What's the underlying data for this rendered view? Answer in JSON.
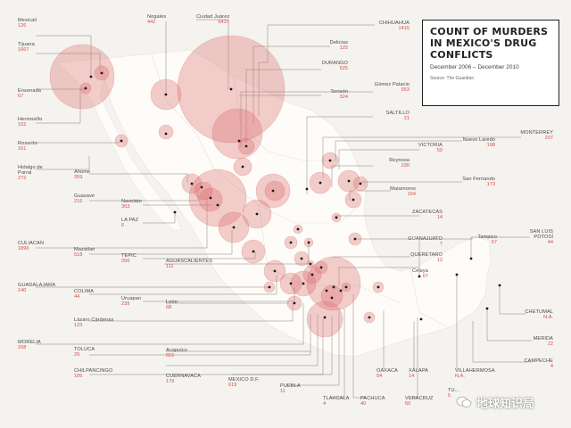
{
  "title": "COUNT OF MURDERS IN MEXICO'S DRUG CONFLICTS",
  "subtitle": "December 2006 – December 2010",
  "source": "Source: The Guardian",
  "watermark": "地球知识局",
  "colors": {
    "bubble": "#dc6b6b",
    "value_text": "#d84a4a",
    "leader": "#555555",
    "land": "#fdfcf8"
  },
  "places": [
    {
      "key": "mexicali",
      "name": "Mexicali",
      "value": "126"
    },
    {
      "key": "tijuana",
      "name": "Tijuana",
      "value": "1667"
    },
    {
      "key": "ensenada",
      "name": "Ensenada",
      "value": "67"
    },
    {
      "key": "hermosillo",
      "name": "Hermosillo",
      "value": "152"
    },
    {
      "key": "rosarito",
      "name": "Rosarito",
      "value": "161"
    },
    {
      "key": "hidalgo",
      "name": "Hidalgo de Parral",
      "value": "272"
    },
    {
      "key": "ahome",
      "name": "Ahome",
      "value": "359"
    },
    {
      "key": "guasave",
      "name": "Guasave",
      "value": "216"
    },
    {
      "key": "navolato",
      "name": "Navolato",
      "value": "363"
    },
    {
      "key": "lapaz",
      "name": "LA PAZ",
      "value": "6"
    },
    {
      "key": "culiacan",
      "name": "CULIACAN",
      "value": "1890"
    },
    {
      "key": "mazatlan",
      "name": "Mazatlan",
      "value": "518"
    },
    {
      "key": "tepic",
      "name": "TEPIC",
      "value": "256"
    },
    {
      "key": "guadalajara",
      "name": "GUADALAJARA",
      "value": "140"
    },
    {
      "key": "colima",
      "name": "COLIMA",
      "value": "44"
    },
    {
      "key": "uruapan",
      "name": "Uruapan",
      "value": "239"
    },
    {
      "key": "lazaro",
      "name": "Lázaro Cárdenas",
      "value": "123"
    },
    {
      "key": "morelia",
      "name": "MORELIA",
      "value": "208"
    },
    {
      "key": "toluca",
      "name": "TOLUCA",
      "value": "29"
    },
    {
      "key": "chilpancingo",
      "name": "CHILPANCINGO",
      "value": "106"
    },
    {
      "key": "nogales",
      "name": "Nogales",
      "value": "442"
    },
    {
      "key": "juarez",
      "name": "Ciudad Juárez",
      "value": "6437"
    },
    {
      "key": "chihuahua",
      "name": "CHIHUAHUA",
      "value": "1415"
    },
    {
      "key": "delicias",
      "name": "Delicias",
      "value": "125"
    },
    {
      "key": "durango",
      "name": "DURANGO",
      "value": "525"
    },
    {
      "key": "gomez",
      "name": "Gómez Palacio",
      "value": "553"
    },
    {
      "key": "torreon",
      "name": "Torreón",
      "value": "324"
    },
    {
      "key": "saltillo",
      "name": "SALTILLO",
      "value": "21"
    },
    {
      "key": "monterrey",
      "name": "MONTERREY",
      "value": "207"
    },
    {
      "key": "nuevolaredo",
      "name": "Nuevo Laredo",
      "value": "198"
    },
    {
      "key": "victoria",
      "name": "VICTORIA",
      "value": "50"
    },
    {
      "key": "reynosa",
      "name": "Reynosa",
      "value": "230"
    },
    {
      "key": "sanfernando",
      "name": "San Fernando",
      "value": "173"
    },
    {
      "key": "matamoros",
      "name": "Matamoros",
      "value": "154"
    },
    {
      "key": "zacatecas",
      "name": "ZACATECAS",
      "value": "14"
    },
    {
      "key": "aguascalientes",
      "name": "AGUASCALIENTES",
      "value": "111"
    },
    {
      "key": "guanajuato",
      "name": "GUANAJUATO",
      "value": "7"
    },
    {
      "key": "queretaro",
      "name": "QUERÉTARO",
      "value": "12"
    },
    {
      "key": "celaya",
      "name": "Celaya",
      "value": "67"
    },
    {
      "key": "tampico",
      "name": "Tampico",
      "value": "67"
    },
    {
      "key": "sanluis",
      "name": "SAN LUIS POTOSÍ",
      "value": "44"
    },
    {
      "key": "leon",
      "name": "León",
      "value": "68"
    },
    {
      "key": "acapulco",
      "name": "Acapulco",
      "value": "551"
    },
    {
      "key": "cuernavaca",
      "name": "CUERNAVACA",
      "value": "179"
    },
    {
      "key": "mexicodf",
      "name": "MEXICO D.F.",
      "value": "619"
    },
    {
      "key": "puebla",
      "name": "PUEBLA",
      "value": "11"
    },
    {
      "key": "tlaxcala",
      "name": "TLAXCALA",
      "value": "4"
    },
    {
      "key": "pachuca",
      "name": "PACHUCA",
      "value": "40"
    },
    {
      "key": "oaxaca",
      "name": "OAXACA",
      "value": "54"
    },
    {
      "key": "xalapa",
      "name": "XALAPA",
      "value": "14"
    },
    {
      "key": "veracruz",
      "name": "VERACRUZ",
      "value": "60"
    },
    {
      "key": "villahermosa",
      "name": "VILLAHERMOSA",
      "value": "N.A."
    },
    {
      "key": "tuxtla",
      "name": "TU...",
      "value": "5"
    },
    {
      "key": "chetumal",
      "name": "CHETUMAL",
      "value": "N.A."
    },
    {
      "key": "merida",
      "name": "MERIDA",
      "value": "22"
    },
    {
      "key": "campeche",
      "name": "CAMPECHE",
      "value": "4"
    }
  ]
}
